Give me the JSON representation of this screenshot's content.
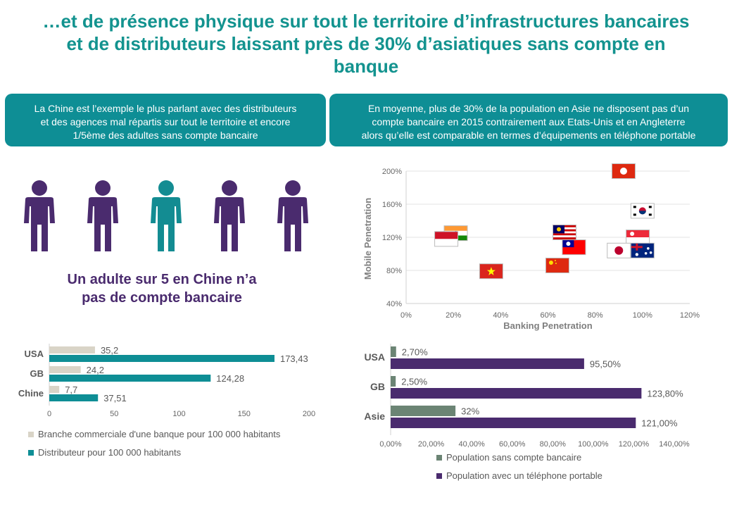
{
  "page": {
    "title_lines": [
      "…et de présence physique sur tout le territoire d’infrastructures bancaires",
      "et de distributeurs laissant près de 30% d’asiatiques sans compte en",
      "banque"
    ],
    "box_left_lines": [
      "La Chine est l’exemple le plus parlant avec des distributeurs",
      "et des agences  mal répartis sur tout le territoire et encore",
      "1/5ème  des adultes sans compte bancaire"
    ],
    "box_right_lines": [
      "En moyenne, plus de 30% de la population en Asie ne disposent pas d’un",
      "compte bancaire en 2015 contrairement aux Etats-Unis et en Angleterre",
      "alors qu’elle est comparable en termes d’équipements en téléphone portable"
    ],
    "tagline_lines": [
      "Un adulte sur 5 en Chine n’a",
      "pas de compte bancaire"
    ]
  },
  "colors": {
    "teal": "#13938f",
    "box_teal": "#0e8e95",
    "purple": "#4a2b6e",
    "beige": "#d9d4c7",
    "bar_teal": "#0e8e95",
    "gray_green": "#6b8474",
    "bar_purple": "#4a2b6e",
    "highlight_person": "#138c92",
    "person": "#4a2b6e"
  },
  "people": {
    "count": 5,
    "highlight_index": 2,
    "icon": "person-icon"
  },
  "chart_data": [
    {
      "type": "scatter",
      "xlabel": "Banking Penetration",
      "ylabel": "Mobile Penetration",
      "xlim": [
        0,
        120
      ],
      "ylim": [
        40,
        200
      ],
      "xticks": [
        0,
        20,
        40,
        60,
        80,
        100,
        120
      ],
      "yticks": [
        40,
        80,
        120,
        160,
        200
      ],
      "x_tick_labels": [
        "0%",
        "20%",
        "40%",
        "60%",
        "80%",
        "100%",
        "120%"
      ],
      "y_tick_labels": [
        "40%",
        "80%",
        "120%",
        "160%",
        "200%"
      ],
      "grid": "horizontal",
      "points": [
        {
          "flag": "hong-kong-flag",
          "x": 92,
          "y": 200
        },
        {
          "flag": "south-korea-flag",
          "x": 100,
          "y": 152
        },
        {
          "flag": "india-flag",
          "x": 21,
          "y": 125
        },
        {
          "flag": "indonesia-flag",
          "x": 17,
          "y": 118
        },
        {
          "flag": "malaysia-flag",
          "x": 67,
          "y": 126
        },
        {
          "flag": "singapore-flag",
          "x": 98,
          "y": 120
        },
        {
          "flag": "taiwan-flag",
          "x": 71,
          "y": 108
        },
        {
          "flag": "japan-flag",
          "x": 90,
          "y": 104
        },
        {
          "flag": "australia-flag",
          "x": 100,
          "y": 104
        },
        {
          "flag": "china-flag",
          "x": 64,
          "y": 86
        },
        {
          "flag": "vietnam-flag",
          "x": 36,
          "y": 79
        }
      ]
    },
    {
      "type": "bar",
      "orientation": "horizontal",
      "categories": [
        "USA",
        "GB",
        "Chine"
      ],
      "series": [
        {
          "name": "Branche commerciale d'une banque pour 100 000 habitants",
          "values": [
            35.2,
            24.2,
            7.7
          ],
          "labels": [
            "35,2",
            "24,2",
            "7,7"
          ]
        },
        {
          "name": "Distributeur pour 100 000 habitants",
          "values": [
            173.43,
            124.28,
            37.51
          ],
          "labels": [
            "173,43",
            "124,28",
            "37,51"
          ]
        }
      ],
      "xlim": [
        0,
        200
      ],
      "xticks": [
        0,
        50,
        100,
        150,
        200
      ],
      "x_tick_labels": [
        "0",
        "50",
        "100",
        "150",
        "200"
      ],
      "legend": "bottom"
    },
    {
      "type": "bar",
      "orientation": "horizontal",
      "categories": [
        "USA",
        "GB",
        "Asie"
      ],
      "series": [
        {
          "name": "Population sans compte bancaire",
          "values": [
            2.7,
            2.5,
            32
          ],
          "labels": [
            "2,70%",
            "2,50%",
            "32%"
          ]
        },
        {
          "name": "Population avec un téléphone portable",
          "values": [
            95.5,
            123.8,
            121
          ],
          "labels": [
            "95,50%",
            "123,80%",
            "121,00%"
          ]
        }
      ],
      "xlim": [
        0,
        140
      ],
      "xticks": [
        0,
        20,
        40,
        60,
        80,
        100,
        120,
        140
      ],
      "x_tick_labels": [
        "0,00%",
        "20,00%",
        "40,00%",
        "60,00%",
        "80,00%",
        "100,00%",
        "120,00%",
        "140,00%"
      ],
      "legend": "bottom"
    }
  ]
}
